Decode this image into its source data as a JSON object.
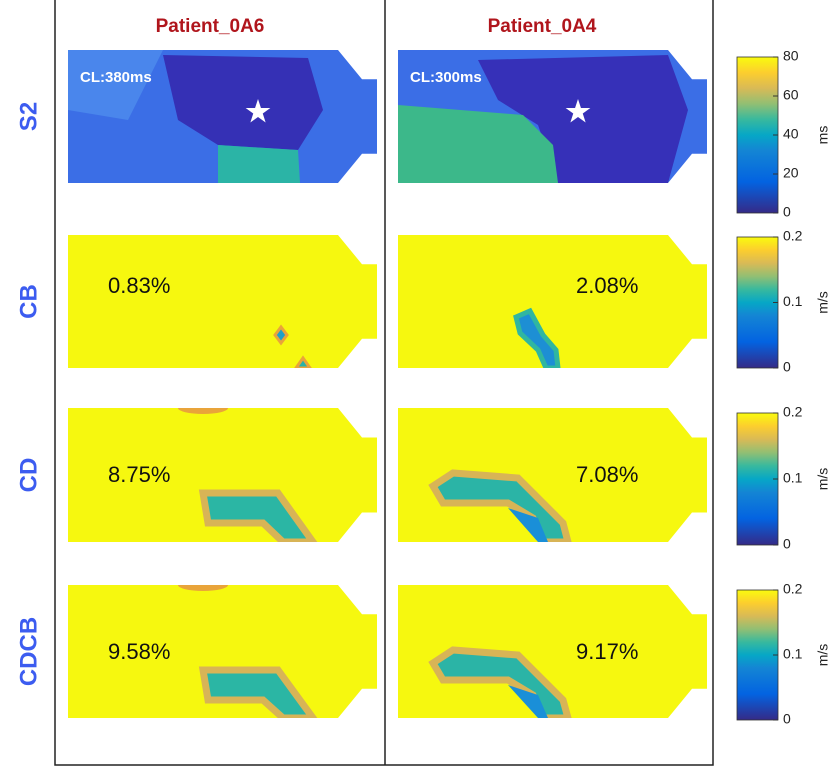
{
  "columns": [
    {
      "title": "Patient_0A6",
      "cycle_length": "CL:380ms"
    },
    {
      "title": "Patient_0A4",
      "cycle_length": "CL:300ms"
    }
  ],
  "rows": [
    {
      "label": "S2",
      "annotations": []
    },
    {
      "label": "CB",
      "annotations": [
        "0.83%",
        "2.08%"
      ]
    },
    {
      "label": "CD",
      "annotations": [
        "8.75%",
        "7.08%"
      ]
    },
    {
      "label": "CDCB",
      "annotations": [
        "9.58%",
        "9.17%"
      ]
    }
  ],
  "colorbars": [
    {
      "unit": "ms",
      "range": [
        0,
        80
      ],
      "ticks": [
        0,
        20,
        40,
        60,
        80
      ]
    },
    {
      "unit": "m/s",
      "range": [
        0,
        0.2
      ],
      "ticks": [
        0,
        0.1,
        0.2
      ]
    },
    {
      "unit": "m/s",
      "range": [
        0,
        0.2
      ],
      "ticks": [
        0,
        0.1,
        0.2
      ]
    },
    {
      "unit": "m/s",
      "range": [
        0,
        0.2
      ],
      "ticks": [
        0,
        0.1,
        0.2
      ]
    }
  ]
}
